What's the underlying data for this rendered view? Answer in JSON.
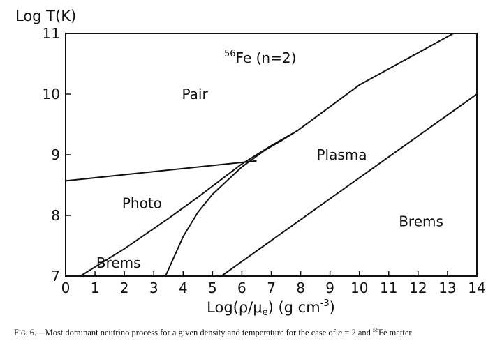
{
  "chart_data": {
    "type": "line",
    "title": "56Fe (n=2)",
    "title_parts": {
      "superscript": "56",
      "main": "Fe (n=2)"
    },
    "ylabel": "Log T(K)",
    "xlabel": "Log(ρ/μe) (g cm-3)",
    "xlabel_parts": {
      "pre": "Log(ρ/μ",
      "sub": "e",
      "mid": ") (g cm",
      "sup": "-3",
      "post": ")"
    },
    "xlim": [
      0,
      14
    ],
    "ylim": [
      7,
      11
    ],
    "xticks": [
      0,
      1,
      2,
      3,
      4,
      5,
      6,
      7,
      8,
      9,
      10,
      11,
      12,
      13,
      14
    ],
    "yticks": [
      7,
      8,
      9,
      10,
      11
    ],
    "grid": false,
    "series": [
      {
        "points": [
          [
            0,
            8.57
          ],
          [
            6.5,
            8.9
          ]
        ]
      },
      {
        "points": [
          [
            0.5,
            7.0
          ],
          [
            2.0,
            7.45
          ],
          [
            3.5,
            7.95
          ],
          [
            4.5,
            8.3
          ],
          [
            6.0,
            8.85
          ],
          [
            7.0,
            9.15
          ],
          [
            7.9,
            9.4
          ],
          [
            10.0,
            10.15
          ],
          [
            13.2,
            11.0
          ]
        ]
      },
      {
        "points": [
          [
            3.4,
            7.0
          ],
          [
            4.0,
            7.65
          ],
          [
            4.5,
            8.05
          ],
          [
            5.0,
            8.35
          ],
          [
            6.0,
            8.8
          ],
          [
            6.8,
            9.08
          ],
          [
            7.3,
            9.22
          ],
          [
            7.9,
            9.4
          ]
        ]
      },
      {
        "points": [
          [
            5.3,
            7.0
          ],
          [
            14.0,
            10.0
          ]
        ]
      }
    ],
    "region_labels": [
      {
        "text": "Pair",
        "x": 4.4,
        "y": 10.0
      },
      {
        "text": "Plasma",
        "x": 9.4,
        "y": 9.0
      },
      {
        "text": "Photo",
        "x": 2.6,
        "y": 8.2
      },
      {
        "text": "Brems",
        "x": 12.1,
        "y": 7.9
      },
      {
        "text": "Brems",
        "x": 1.8,
        "y": 7.22
      }
    ]
  },
  "caption": "Fig. 6.—Most dominant neutrino process for a given density and temperature for the case of n = 2 and 56Fe matter",
  "caption_parts": {
    "prefix": "Fig. 6.",
    "body": "—Most dominant neutrino process for a given density and temperature for the case of ",
    "n_var": "n",
    "n_eq": " = 2 and ",
    "fe_sup": "56",
    "fe_post": "Fe matter"
  }
}
